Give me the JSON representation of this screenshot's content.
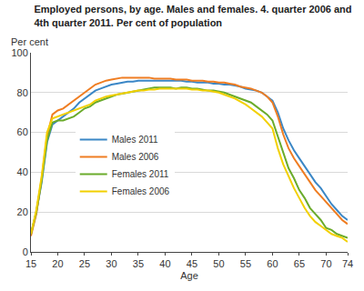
{
  "chart_data": {
    "type": "line",
    "title": "Employed persons, by age. Males and females. 4. quarter 2006 and\n4th quarter 2011. Per cent of population",
    "xlabel": "Age",
    "ylabel": "Per cent",
    "x": [
      15,
      16,
      17,
      18,
      19,
      20,
      21,
      22,
      23,
      24,
      25,
      26,
      27,
      28,
      29,
      30,
      31,
      32,
      33,
      34,
      35,
      36,
      37,
      38,
      39,
      40,
      41,
      42,
      43,
      44,
      45,
      46,
      47,
      48,
      49,
      50,
      51,
      52,
      53,
      54,
      55,
      56,
      57,
      58,
      59,
      60,
      61,
      62,
      63,
      64,
      65,
      66,
      67,
      68,
      69,
      70,
      71,
      72,
      73,
      74
    ],
    "series": [
      {
        "name": "Males 2011",
        "color": "#3b87c6",
        "values": [
          9,
          20,
          35,
          55,
          64,
          66,
          68,
          70,
          72,
          75,
          77,
          79,
          81,
          82,
          83,
          84,
          84.5,
          85,
          85.5,
          85.5,
          86,
          86,
          86,
          86,
          86,
          86,
          86,
          86,
          86,
          85.5,
          85.5,
          85,
          85,
          85,
          84.5,
          84.5,
          84,
          84,
          83.5,
          83,
          82,
          81.5,
          81,
          80,
          78,
          76,
          70,
          62,
          56,
          51,
          47,
          43,
          39,
          35,
          32,
          28,
          24,
          21,
          18,
          16
        ]
      },
      {
        "name": "Males 2006",
        "color": "#ef7d22",
        "values": [
          8,
          19,
          37,
          58,
          69,
          71,
          72,
          74,
          76,
          78,
          80,
          82,
          84,
          85,
          86,
          86.5,
          87,
          87.5,
          87.5,
          87.5,
          87.5,
          87.5,
          87.5,
          87,
          87,
          87,
          87,
          86.5,
          86.5,
          86.5,
          86,
          86,
          86,
          85.5,
          85.5,
          85,
          85,
          84.5,
          84,
          83,
          82.5,
          82,
          81,
          80,
          78,
          75,
          68,
          59,
          52,
          47,
          43,
          39,
          35,
          31,
          28,
          25,
          22,
          19,
          16,
          14
        ]
      },
      {
        "name": "Females 2011",
        "color": "#6aab2b",
        "values": [
          9,
          20,
          36,
          56,
          65,
          66,
          66,
          67,
          68,
          70,
          72,
          73,
          75,
          76,
          77,
          78,
          79,
          79.5,
          80,
          80.5,
          81,
          81.5,
          82,
          82.5,
          82.5,
          82.5,
          82.5,
          82,
          82.5,
          82.5,
          82,
          82,
          81.5,
          81,
          81,
          80.5,
          80,
          79,
          78,
          77,
          76,
          75,
          73,
          71,
          69,
          66,
          58,
          49,
          42,
          37,
          31,
          27,
          22,
          19,
          16,
          12,
          11,
          9,
          8,
          7
        ]
      },
      {
        "name": "Females 2006",
        "color": "#f2d000",
        "values": [
          9,
          21,
          38,
          60,
          67,
          68,
          69,
          70,
          71,
          72,
          73,
          74,
          76,
          77,
          78,
          78.5,
          79,
          79.5,
          80,
          80.5,
          81,
          81,
          81.5,
          81.5,
          82,
          82,
          82,
          82,
          82,
          82,
          81.5,
          81.5,
          81,
          81,
          80.5,
          80,
          79,
          78,
          77,
          75.5,
          74,
          72,
          70,
          68,
          65,
          62,
          52,
          44,
          38,
          32,
          27,
          22,
          18,
          15,
          13,
          11,
          9,
          8,
          7,
          5
        ]
      }
    ],
    "xlim": [
      15,
      74
    ],
    "xticks": [
      15,
      20,
      25,
      30,
      35,
      40,
      45,
      50,
      55,
      60,
      65,
      70,
      74
    ],
    "ylim": [
      0,
      100
    ],
    "yticks": [
      0,
      20,
      40,
      60,
      80,
      100
    ],
    "grid": true,
    "legend": "left"
  }
}
